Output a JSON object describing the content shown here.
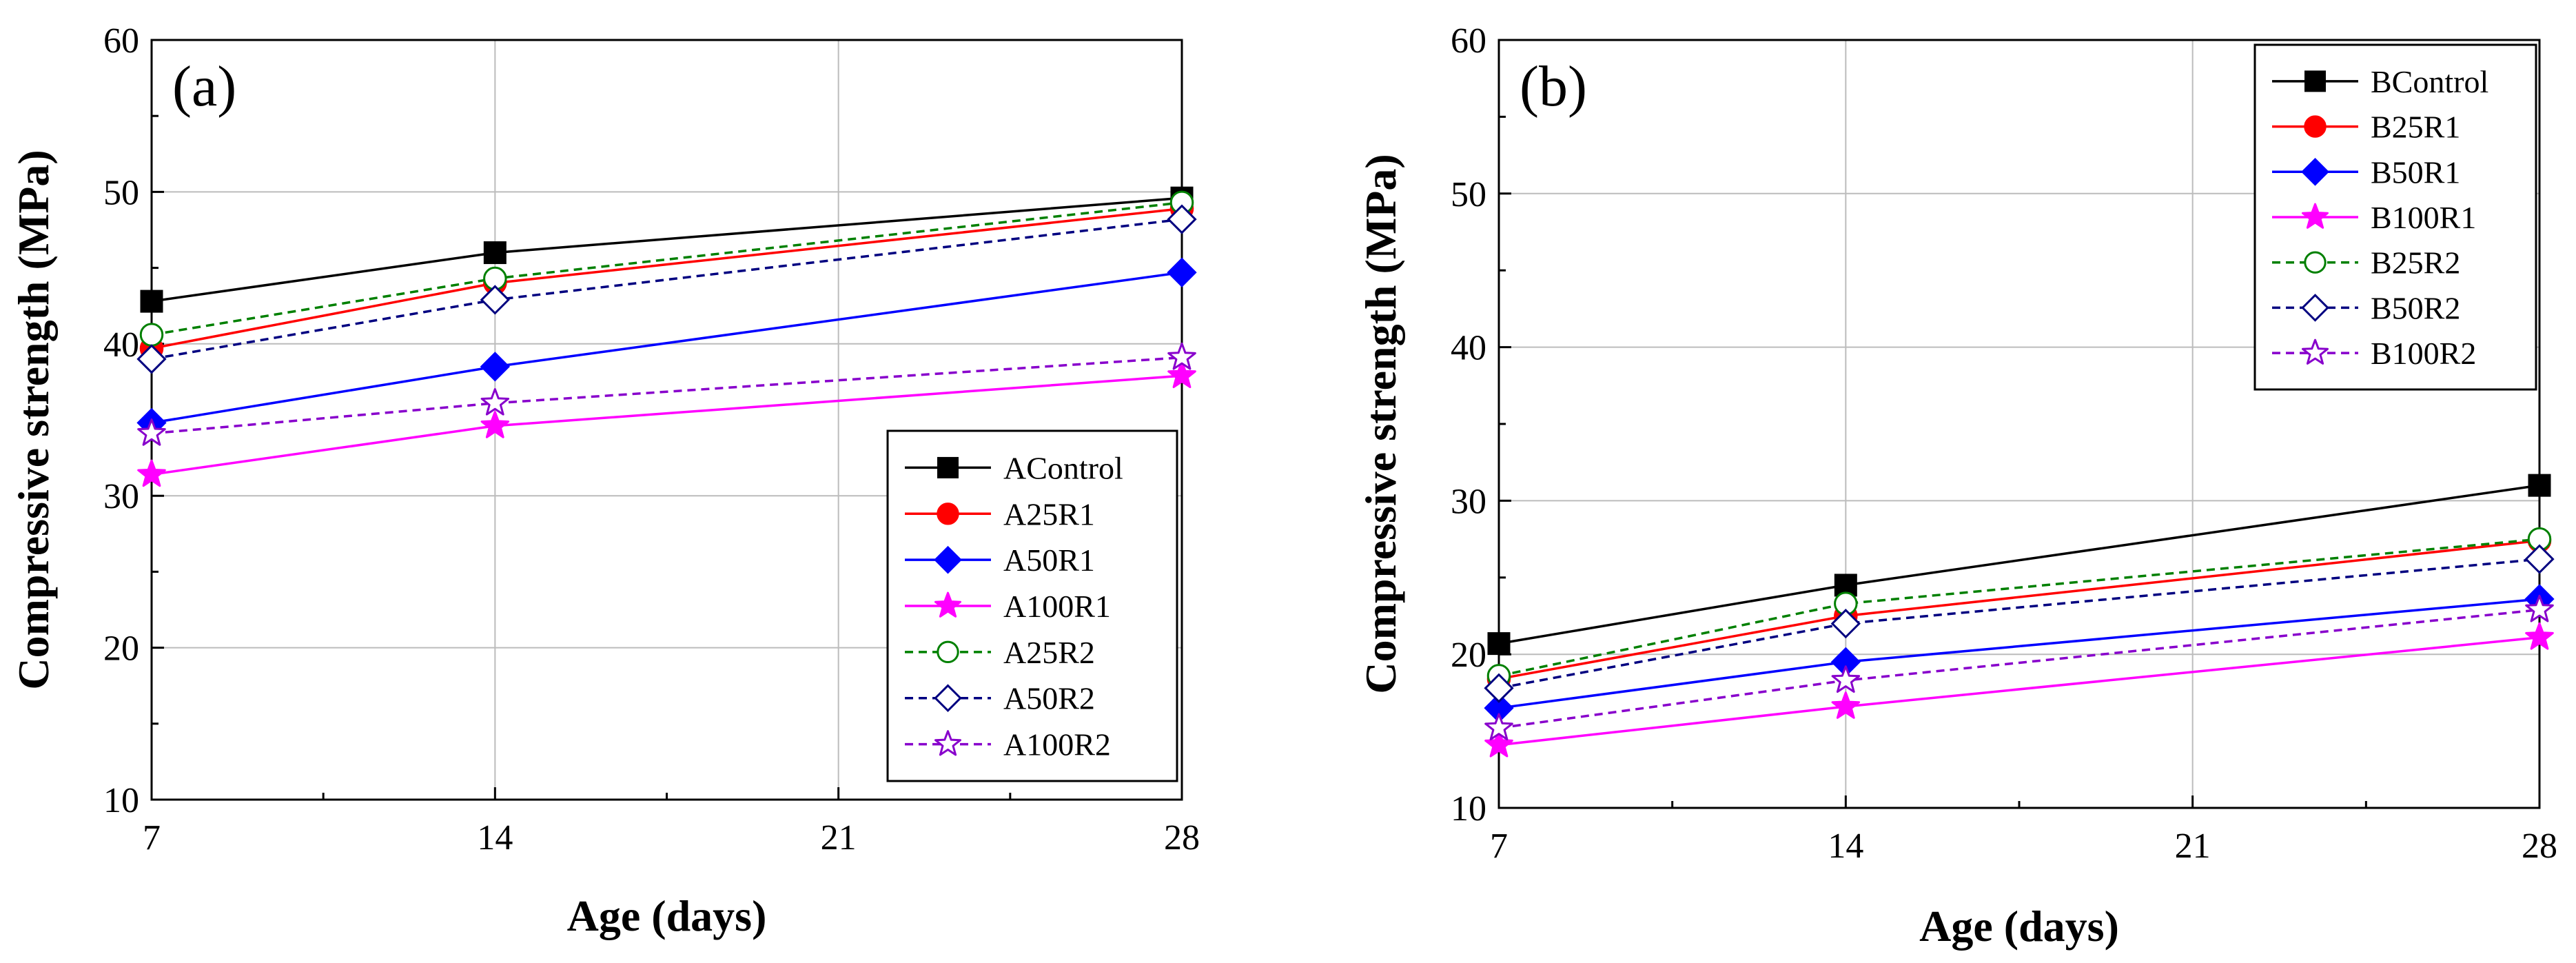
{
  "chart_data": [
    {
      "type": "line",
      "panel_label": "(a)",
      "xlabel": "Age (days)",
      "ylabel": "Compressive strength (MPa)",
      "xlim": [
        7,
        28
      ],
      "ylim": [
        10,
        60
      ],
      "xticks": [
        7,
        14,
        21,
        28
      ],
      "yticks": [
        10,
        20,
        30,
        40,
        50,
        60
      ],
      "grid": true,
      "legend_position": "bottom-right",
      "x": [
        7,
        14,
        28
      ],
      "series": [
        {
          "name": "AControl",
          "values": [
            42.8,
            46.0,
            49.6
          ],
          "color": "#000000",
          "marker": "square",
          "filled": true,
          "dashed": false
        },
        {
          "name": "A25R1",
          "values": [
            39.7,
            44.0,
            48.9
          ],
          "color": "#ff0000",
          "marker": "circle",
          "filled": true,
          "dashed": false
        },
        {
          "name": "A50R1",
          "values": [
            34.8,
            38.5,
            44.7
          ],
          "color": "#0000ff",
          "marker": "diamond",
          "filled": true,
          "dashed": false
        },
        {
          "name": "A100R1",
          "values": [
            31.4,
            34.6,
            37.9
          ],
          "color": "#ff00ff",
          "marker": "star",
          "filled": true,
          "dashed": false
        },
        {
          "name": "A25R2",
          "values": [
            40.6,
            44.3,
            49.3
          ],
          "color": "#008000",
          "marker": "circle",
          "filled": false,
          "dashed": true
        },
        {
          "name": "A50R2",
          "values": [
            39.0,
            42.9,
            48.2
          ],
          "color": "#000080",
          "marker": "diamond",
          "filled": false,
          "dashed": true
        },
        {
          "name": "A100R2",
          "values": [
            34.1,
            36.1,
            39.1
          ],
          "color": "#8800cc",
          "marker": "star",
          "filled": false,
          "dashed": true
        }
      ]
    },
    {
      "type": "line",
      "panel_label": "(b)",
      "xlabel": "Age (days)",
      "ylabel": "Compressive strength (MPa)",
      "xlim": [
        7,
        28
      ],
      "ylim": [
        10,
        60
      ],
      "xticks": [
        7,
        14,
        21,
        28
      ],
      "yticks": [
        10,
        20,
        30,
        40,
        50,
        60
      ],
      "grid": true,
      "legend_position": "top-right",
      "x": [
        7,
        14,
        28
      ],
      "series": [
        {
          "name": "BControl",
          "values": [
            20.7,
            24.5,
            31.0
          ],
          "color": "#000000",
          "marker": "square",
          "filled": true,
          "dashed": false
        },
        {
          "name": "B25R1",
          "values": [
            18.4,
            22.5,
            27.4
          ],
          "color": "#ff0000",
          "marker": "circle",
          "filled": true,
          "dashed": false
        },
        {
          "name": "B50R1",
          "values": [
            16.5,
            19.5,
            23.6
          ],
          "color": "#0000ff",
          "marker": "diamond",
          "filled": true,
          "dashed": false
        },
        {
          "name": "B100R1",
          "values": [
            14.1,
            16.6,
            21.1
          ],
          "color": "#ff00ff",
          "marker": "star",
          "filled": true,
          "dashed": false
        },
        {
          "name": "B25R2",
          "values": [
            18.6,
            23.3,
            27.5
          ],
          "color": "#008000",
          "marker": "circle",
          "filled": false,
          "dashed": true
        },
        {
          "name": "B50R2",
          "values": [
            17.8,
            22.0,
            26.2
          ],
          "color": "#000080",
          "marker": "diamond",
          "filled": false,
          "dashed": true
        },
        {
          "name": "B100R2",
          "values": [
            15.2,
            18.3,
            22.9
          ],
          "color": "#8800cc",
          "marker": "star",
          "filled": false,
          "dashed": true
        }
      ]
    }
  ]
}
